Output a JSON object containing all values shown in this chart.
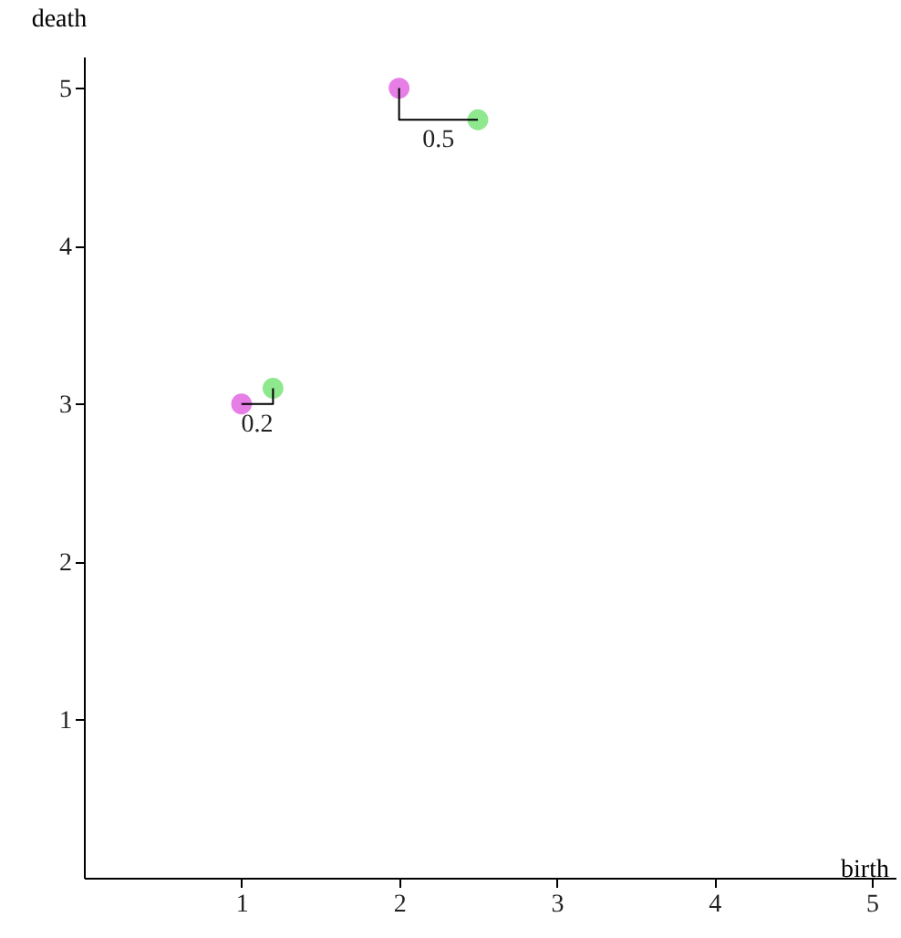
{
  "chart_data": {
    "type": "scatter",
    "xlabel": "birth",
    "ylabel": "death",
    "xlim": [
      0,
      5.15
    ],
    "ylim": [
      0,
      5.2
    ],
    "xticks": [
      1,
      2,
      3,
      4,
      5
    ],
    "yticks": [
      1,
      2,
      3,
      4,
      5
    ],
    "grid": false,
    "marker": "circle",
    "series": [
      {
        "color": "#e67ee6",
        "x": [
          1,
          2
        ],
        "values": [
          3,
          5
        ]
      },
      {
        "color": "#8ee88e",
        "x": [
          1.2,
          2.5
        ],
        "values": [
          3.1,
          4.8
        ]
      },
      {
        "type": "line",
        "marker": "none",
        "color": "#000000",
        "x": [
          2,
          2,
          2.5
        ],
        "values": [
          5,
          4.8,
          4.8
        ]
      },
      {
        "type": "line",
        "marker": "none",
        "color": "#000000",
        "x": [
          1,
          1.2,
          1.2
        ],
        "values": [
          3,
          3,
          3.1
        ]
      }
    ],
    "annotations": [
      {
        "text": "0.5",
        "x": 2.25,
        "y": 4.8
      },
      {
        "text": "0.2",
        "x": 1.1,
        "y": 3
      }
    ]
  }
}
